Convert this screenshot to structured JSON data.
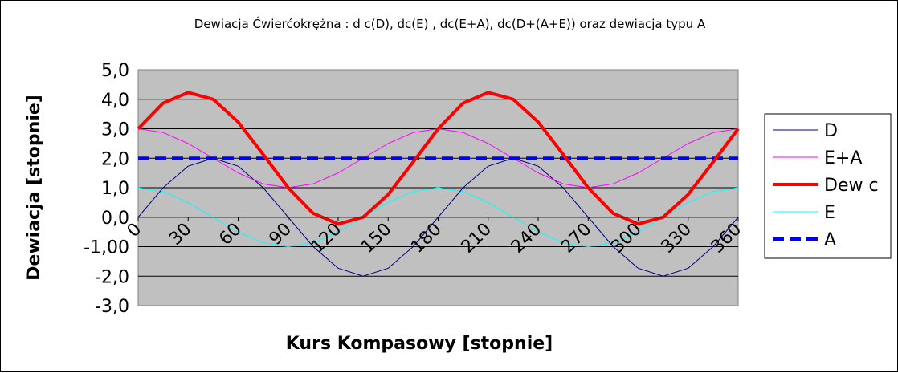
{
  "chart_data": {
    "type": "line",
    "title": "Dewiacja Ćwierćokrężna : d c(D), dc(E) , dc(E+A), dc(D+(A+E)) oraz dewiacja typu A",
    "xlabel": "Kurs Kompasowy  [stopnie]",
    "ylabel": "Dewiacja [stopnie]",
    "xlim": [
      0,
      360
    ],
    "ylim": [
      -3.0,
      5.0
    ],
    "x_ticks": [
      0,
      30,
      60,
      90,
      120,
      150,
      180,
      210,
      240,
      270,
      300,
      330,
      360
    ],
    "x_tick_labels": [
      "0",
      "30",
      "60",
      "90",
      "120",
      "150",
      "180",
      "210",
      "240",
      "270",
      "300",
      "330",
      "360"
    ],
    "y_ticks": [
      -3,
      -2,
      -1,
      0,
      1,
      2,
      3,
      4,
      5
    ],
    "y_tick_labels": [
      "-3,0",
      "-2,0",
      "-1,00",
      "0,0",
      "1,0",
      "2,0",
      "3,0",
      "4,0",
      "5,0"
    ],
    "grid": "horizontal",
    "plot_background": "#c0c0c0",
    "legend_position": "right",
    "x": [
      0,
      15,
      30,
      45,
      60,
      75,
      90,
      105,
      120,
      135,
      150,
      165,
      180,
      195,
      210,
      225,
      240,
      255,
      270,
      285,
      300,
      315,
      330,
      345,
      360
    ],
    "series": [
      {
        "name": "D",
        "color": "#000080",
        "style": "solid",
        "values": [
          0.0,
          1.0,
          1.73,
          2.0,
          1.73,
          1.0,
          0.0,
          -1.0,
          -1.73,
          -2.0,
          -1.73,
          -1.0,
          0.0,
          1.0,
          1.73,
          2.0,
          1.73,
          1.0,
          0.0,
          -1.0,
          -1.73,
          -2.0,
          -1.73,
          -1.0,
          0.0
        ]
      },
      {
        "name": "E+A",
        "color": "#ff00ff",
        "style": "solid",
        "values": [
          3.0,
          2.87,
          2.5,
          2.0,
          1.5,
          1.13,
          1.0,
          1.13,
          1.5,
          2.0,
          2.5,
          2.87,
          3.0,
          2.87,
          2.5,
          2.0,
          1.5,
          1.13,
          1.0,
          1.13,
          1.5,
          2.0,
          2.5,
          2.87,
          3.0
        ]
      },
      {
        "name": "Dew c",
        "color": "#ff0000",
        "style": "solid-thick",
        "values": [
          3.0,
          3.87,
          4.23,
          4.0,
          3.23,
          2.13,
          1.0,
          0.13,
          -0.23,
          0.0,
          0.77,
          1.87,
          3.0,
          3.87,
          4.23,
          4.0,
          3.23,
          2.13,
          1.0,
          0.13,
          -0.23,
          0.0,
          0.77,
          1.87,
          3.0
        ]
      },
      {
        "name": "E",
        "color": "#00ffff",
        "style": "solid",
        "values": [
          1.0,
          0.87,
          0.5,
          0.0,
          -0.5,
          -0.87,
          -1.0,
          -0.87,
          -0.5,
          0.0,
          0.5,
          0.87,
          1.0,
          0.87,
          0.5,
          0.0,
          -0.5,
          -0.87,
          -1.0,
          -0.87,
          -0.5,
          0.0,
          0.5,
          0.87,
          1.0
        ]
      },
      {
        "name": "A",
        "color": "#0000ff",
        "style": "dashed-thick",
        "values": [
          2.0,
          2.0,
          2.0,
          2.0,
          2.0,
          2.0,
          2.0,
          2.0,
          2.0,
          2.0,
          2.0,
          2.0,
          2.0,
          2.0,
          2.0,
          2.0,
          2.0,
          2.0,
          2.0,
          2.0,
          2.0,
          2.0,
          2.0,
          2.0,
          2.0
        ]
      }
    ]
  }
}
